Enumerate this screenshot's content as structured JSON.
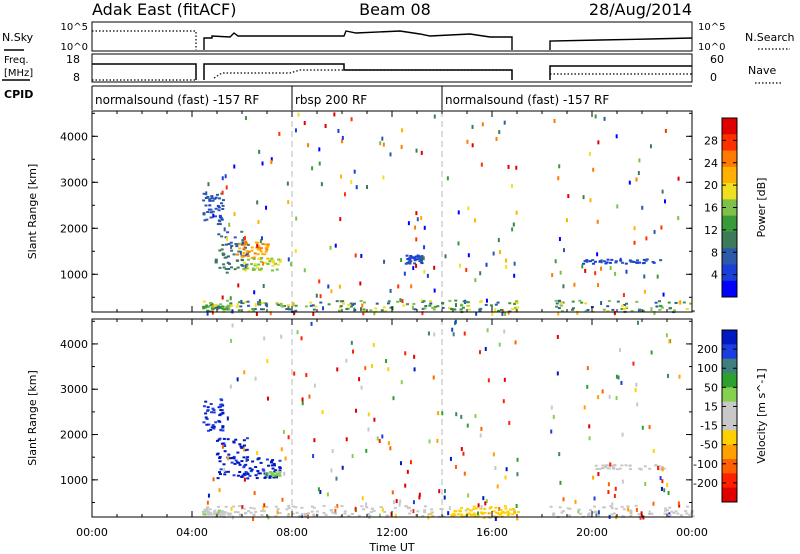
{
  "header": {
    "station": "Adak East (fitACF)",
    "beam": "Beam 08",
    "date": "28/Aug/2014"
  },
  "params": {
    "nsky_label": "N.Sky",
    "nsearch_label": "N.Search",
    "freq_label_line1": "Freq.",
    "freq_label_line2": "[MHz]",
    "nave_label": "Nave",
    "cpid_label": "CPID",
    "nsky_ticks": [
      "10^5",
      "10^0"
    ],
    "nsearch_ticks": [
      "10^5",
      "10^0"
    ],
    "freq_ticks": [
      "18",
      "8"
    ],
    "nave_ticks": [
      "60",
      "0"
    ]
  },
  "cpid_segments": [
    {
      "label": "normalsound (fast) -157 RF",
      "start_hour": 0.0
    },
    {
      "label": "rbsp 200 RF",
      "start_hour": 8.0
    },
    {
      "label": "normalsound (fast) -157 RF",
      "start_hour": 14.0
    }
  ],
  "colors": {
    "power": [
      "#0000ff",
      "#1a3fd9",
      "#2c5aa8",
      "#3d7a5a",
      "#3a9a3a",
      "#7ec04a",
      "#f0e020",
      "#ffb000",
      "#ff7a00",
      "#ff3000",
      "#e00000"
    ],
    "velocity": [
      "#0018c0",
      "#1c3ee0",
      "#3f7f7f",
      "#2ea02e",
      "#86d050",
      "#c8c8c8",
      "#c8c8c8",
      "#ffd000",
      "#ffa000",
      "#ff6000",
      "#ff2000",
      "#e00000"
    ]
  },
  "chart_data": [
    {
      "type": "heatmap",
      "title": "",
      "xlabel": "Time UT",
      "ylabel": "Slant Range [km]",
      "xlim": [
        0,
        24
      ],
      "ylim": [
        180,
        4550
      ],
      "xticks": [
        "00:00",
        "04:00",
        "08:00",
        "12:00",
        "16:00",
        "20:00",
        "00:00"
      ],
      "yticks": [
        "1000",
        "2000",
        "3000",
        "4000"
      ],
      "colorbar": {
        "label": "Power [dB]",
        "range": [
          0,
          32
        ],
        "ticks": [
          "4",
          "8",
          "12",
          "16",
          "20",
          "24",
          "28"
        ]
      },
      "regions": [
        {
          "t": [
            4.9,
            6.2
          ],
          "r": [
            1050,
            1950
          ],
          "value": 9
        },
        {
          "t": [
            5.7,
            7.0
          ],
          "r": [
            1350,
            1750
          ],
          "value": 23
        },
        {
          "t": [
            6.0,
            7.5
          ],
          "r": [
            1100,
            1400
          ],
          "value": 17
        },
        {
          "t": [
            4.4,
            5.2
          ],
          "r": [
            2100,
            2800
          ],
          "value": 7
        },
        {
          "t": [
            4.4,
            5.5
          ],
          "r": [
            250,
            350
          ],
          "value": 14
        },
        {
          "t": [
            12.5,
            13.2
          ],
          "r": [
            1250,
            1450
          ],
          "value": 6
        },
        {
          "t": [
            19.6,
            22.9
          ],
          "r": [
            1250,
            1350
          ],
          "value": 5
        }
      ]
    },
    {
      "type": "heatmap",
      "title": "",
      "xlabel": "Time UT",
      "ylabel": "Slant Range [km]",
      "xlim": [
        0,
        24
      ],
      "ylim": [
        180,
        4550
      ],
      "xticks": [
        "00:00",
        "04:00",
        "08:00",
        "12:00",
        "16:00",
        "20:00",
        "00:00"
      ],
      "yticks": [
        "1000",
        "2000",
        "3000",
        "4000"
      ],
      "colorbar": {
        "label": "Velocity [m s^-1]",
        "range": [
          -250,
          250
        ],
        "ticks": [
          "200",
          "100",
          "50",
          "15",
          "-15",
          "-50",
          "-100",
          "-200"
        ]
      },
      "regions": [
        {
          "t": [
            4.9,
            6.2
          ],
          "r": [
            1050,
            1950
          ],
          "value": 230
        },
        {
          "t": [
            5.7,
            7.5
          ],
          "r": [
            1050,
            1500
          ],
          "value": 220
        },
        {
          "t": [
            6.9,
            7.5
          ],
          "r": [
            1100,
            1200
          ],
          "value": 60
        },
        {
          "t": [
            4.4,
            5.2
          ],
          "r": [
            2100,
            2800
          ],
          "value": 200
        },
        {
          "t": [
            4.4,
            5.5
          ],
          "r": [
            250,
            350
          ],
          "value": 30
        },
        {
          "t": [
            14.2,
            17.0
          ],
          "r": [
            180,
            400
          ],
          "value": -60
        },
        {
          "t": [
            20.0,
            22.9
          ],
          "r": [
            1250,
            1350
          ],
          "value": 0
        }
      ]
    }
  ]
}
